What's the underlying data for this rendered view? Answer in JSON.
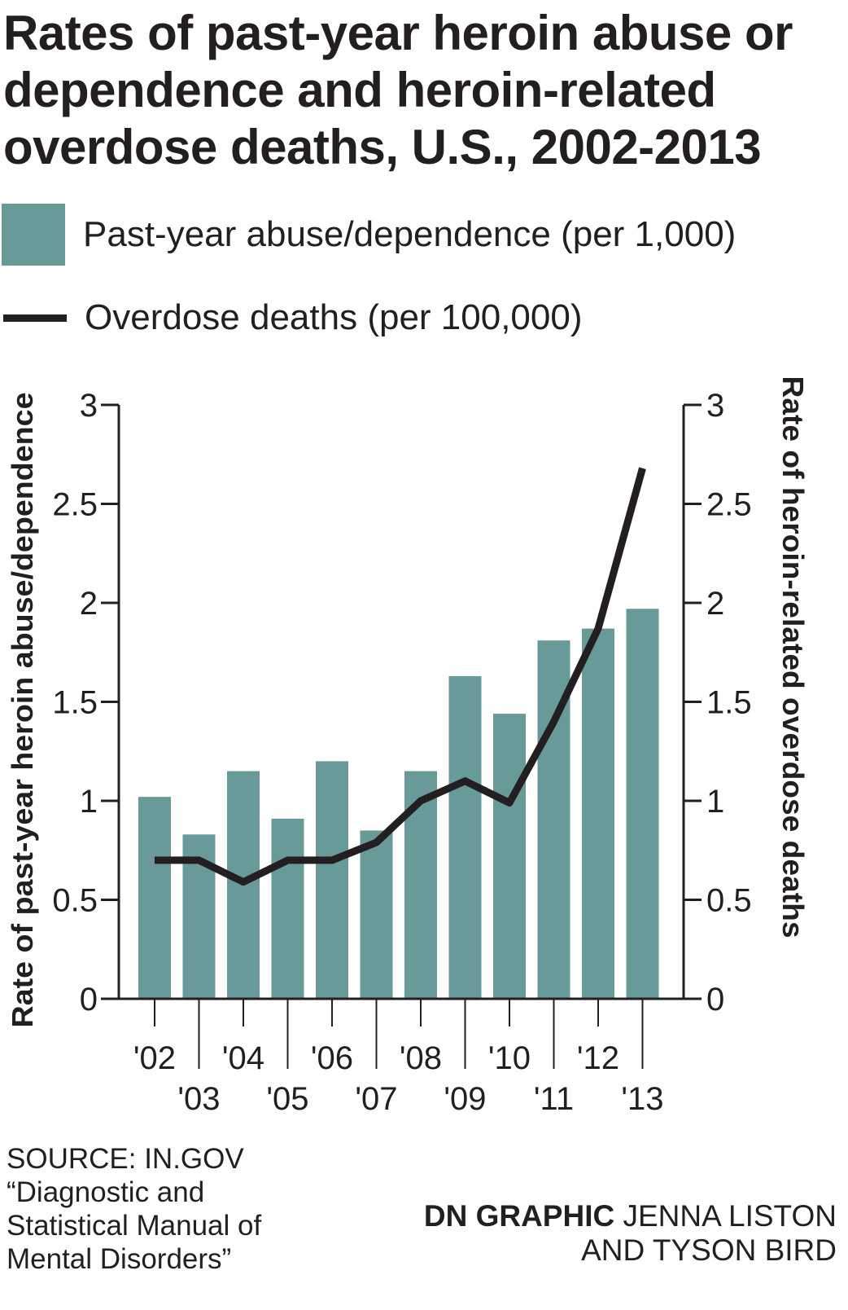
{
  "title_lines": [
    "Rates of past-year heroin abuse or",
    "dependence and heroin-related",
    "overdose deaths, U.S., 2002-2013"
  ],
  "legend": {
    "bars_label": "Past-year abuse/dependence (per 1,000)",
    "line_label": "Overdose deaths (per 100,000)"
  },
  "colors": {
    "bar": "#679a98",
    "line": "#231f20",
    "axis": "#231f20"
  },
  "chart_data": {
    "type": "bar",
    "categories": [
      "'02",
      "'03",
      "'04",
      "'05",
      "'06",
      "'07",
      "'08",
      "'09",
      "'10",
      "'11",
      "'12",
      "'13"
    ],
    "series": [
      {
        "name": "Past-year abuse/dependence (per 1,000)",
        "type": "bar",
        "axis": "left",
        "values": [
          1.02,
          0.83,
          1.15,
          0.91,
          1.2,
          0.85,
          1.15,
          1.63,
          1.44,
          1.81,
          1.87,
          1.97
        ]
      },
      {
        "name": "Overdose deaths (per 100,000)",
        "type": "line",
        "axis": "right",
        "values": [
          0.7,
          0.7,
          0.59,
          0.7,
          0.7,
          0.79,
          1.0,
          1.1,
          0.99,
          1.4,
          1.87,
          2.68
        ]
      }
    ],
    "ylabel": "Rate of past-year heroin abuse/dependence",
    "y2label": "Rate of heroin-related overdose deaths",
    "ylim": [
      0,
      3
    ],
    "y2lim": [
      0,
      3
    ],
    "yticks": [
      "0",
      "0.5",
      "1",
      "1.5",
      "2",
      "2.5",
      "3"
    ],
    "y2ticks": [
      "0",
      "0.5",
      "1",
      "1.5",
      "2",
      "2.5",
      "3"
    ],
    "grid": false,
    "legend_position": "top"
  },
  "footer": {
    "source_lines": [
      "SOURCE: IN.GOV",
      "“Diagnostic and",
      "Statistical Manual of",
      "Mental Disorders”"
    ],
    "credit_brand": "DN GRAPHIC",
    "credit_name_1": "JENNA LISTON",
    "credit_name_2": "AND TYSON BIRD"
  }
}
